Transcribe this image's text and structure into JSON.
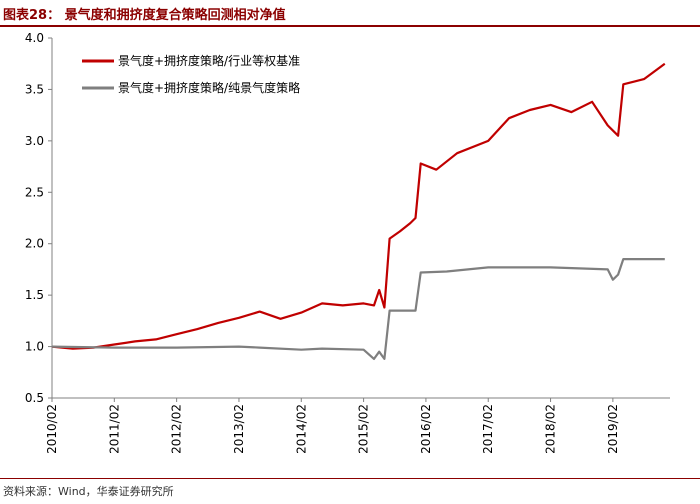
{
  "header": {
    "title": "图表28：  景气度和拥挤度复合策略回测相对净值"
  },
  "footer": {
    "source": "资料来源：Wind，华泰证券研究所"
  },
  "colors": {
    "brand": "#8b0000",
    "series1": "#c00000",
    "series2": "#7f7f7f"
  },
  "chart_data": {
    "type": "line",
    "title": "",
    "xlabel": "",
    "ylabel": "",
    "ylim": [
      0.5,
      4.0
    ],
    "yticks": [
      "0.5",
      "1.0",
      "1.5",
      "2.0",
      "2.5",
      "3.0",
      "3.5",
      "4.0"
    ],
    "xlim": [
      "2010-02",
      "2020-01"
    ],
    "xticks": [
      "2010/02",
      "2011/02",
      "2012/02",
      "2013/02",
      "2014/02",
      "2015/02",
      "2016/02",
      "2017/02",
      "2018/02",
      "2019/02"
    ],
    "grid": false,
    "legend_position": "top-left",
    "series": [
      {
        "name": "景气度+拥挤度策略/行业等权基准",
        "color": "#c00000",
        "points": [
          [
            "2010-02",
            1.0
          ],
          [
            "2010-06",
            0.98
          ],
          [
            "2010-10",
            0.99
          ],
          [
            "2011-02",
            1.02
          ],
          [
            "2011-06",
            1.05
          ],
          [
            "2011-10",
            1.07
          ],
          [
            "2012-02",
            1.12
          ],
          [
            "2012-06",
            1.17
          ],
          [
            "2012-10",
            1.23
          ],
          [
            "2013-02",
            1.28
          ],
          [
            "2013-06",
            1.34
          ],
          [
            "2013-10",
            1.27
          ],
          [
            "2014-02",
            1.33
          ],
          [
            "2014-06",
            1.42
          ],
          [
            "2014-10",
            1.4
          ],
          [
            "2015-02",
            1.42
          ],
          [
            "2015-04",
            1.4
          ],
          [
            "2015-05",
            1.55
          ],
          [
            "2015-06",
            1.38
          ],
          [
            "2015-07",
            2.05
          ],
          [
            "2015-09",
            2.12
          ],
          [
            "2015-11",
            2.2
          ],
          [
            "2015-12",
            2.25
          ],
          [
            "2016-01",
            2.78
          ],
          [
            "2016-04",
            2.72
          ],
          [
            "2016-08",
            2.88
          ],
          [
            "2017-02",
            3.0
          ],
          [
            "2017-06",
            3.22
          ],
          [
            "2017-10",
            3.3
          ],
          [
            "2018-02",
            3.35
          ],
          [
            "2018-06",
            3.28
          ],
          [
            "2018-10",
            3.38
          ],
          [
            "2019-01",
            3.15
          ],
          [
            "2019-03",
            3.05
          ],
          [
            "2019-04",
            3.55
          ],
          [
            "2019-08",
            3.6
          ],
          [
            "2019-12",
            3.75
          ]
        ]
      },
      {
        "name": "景气度+拥挤度策略/纯景气度策略",
        "color": "#7f7f7f",
        "points": [
          [
            "2010-02",
            1.0
          ],
          [
            "2011-02",
            0.99
          ],
          [
            "2012-02",
            0.99
          ],
          [
            "2013-02",
            1.0
          ],
          [
            "2013-06",
            0.99
          ],
          [
            "2014-02",
            0.97
          ],
          [
            "2014-06",
            0.98
          ],
          [
            "2015-02",
            0.97
          ],
          [
            "2015-04",
            0.88
          ],
          [
            "2015-05",
            0.95
          ],
          [
            "2015-06",
            0.88
          ],
          [
            "2015-07",
            1.35
          ],
          [
            "2015-12",
            1.35
          ],
          [
            "2016-01",
            1.72
          ],
          [
            "2016-06",
            1.73
          ],
          [
            "2017-02",
            1.77
          ],
          [
            "2018-02",
            1.77
          ],
          [
            "2019-01",
            1.75
          ],
          [
            "2019-02",
            1.65
          ],
          [
            "2019-03",
            1.7
          ],
          [
            "2019-04",
            1.85
          ],
          [
            "2019-12",
            1.85
          ]
        ]
      }
    ]
  }
}
